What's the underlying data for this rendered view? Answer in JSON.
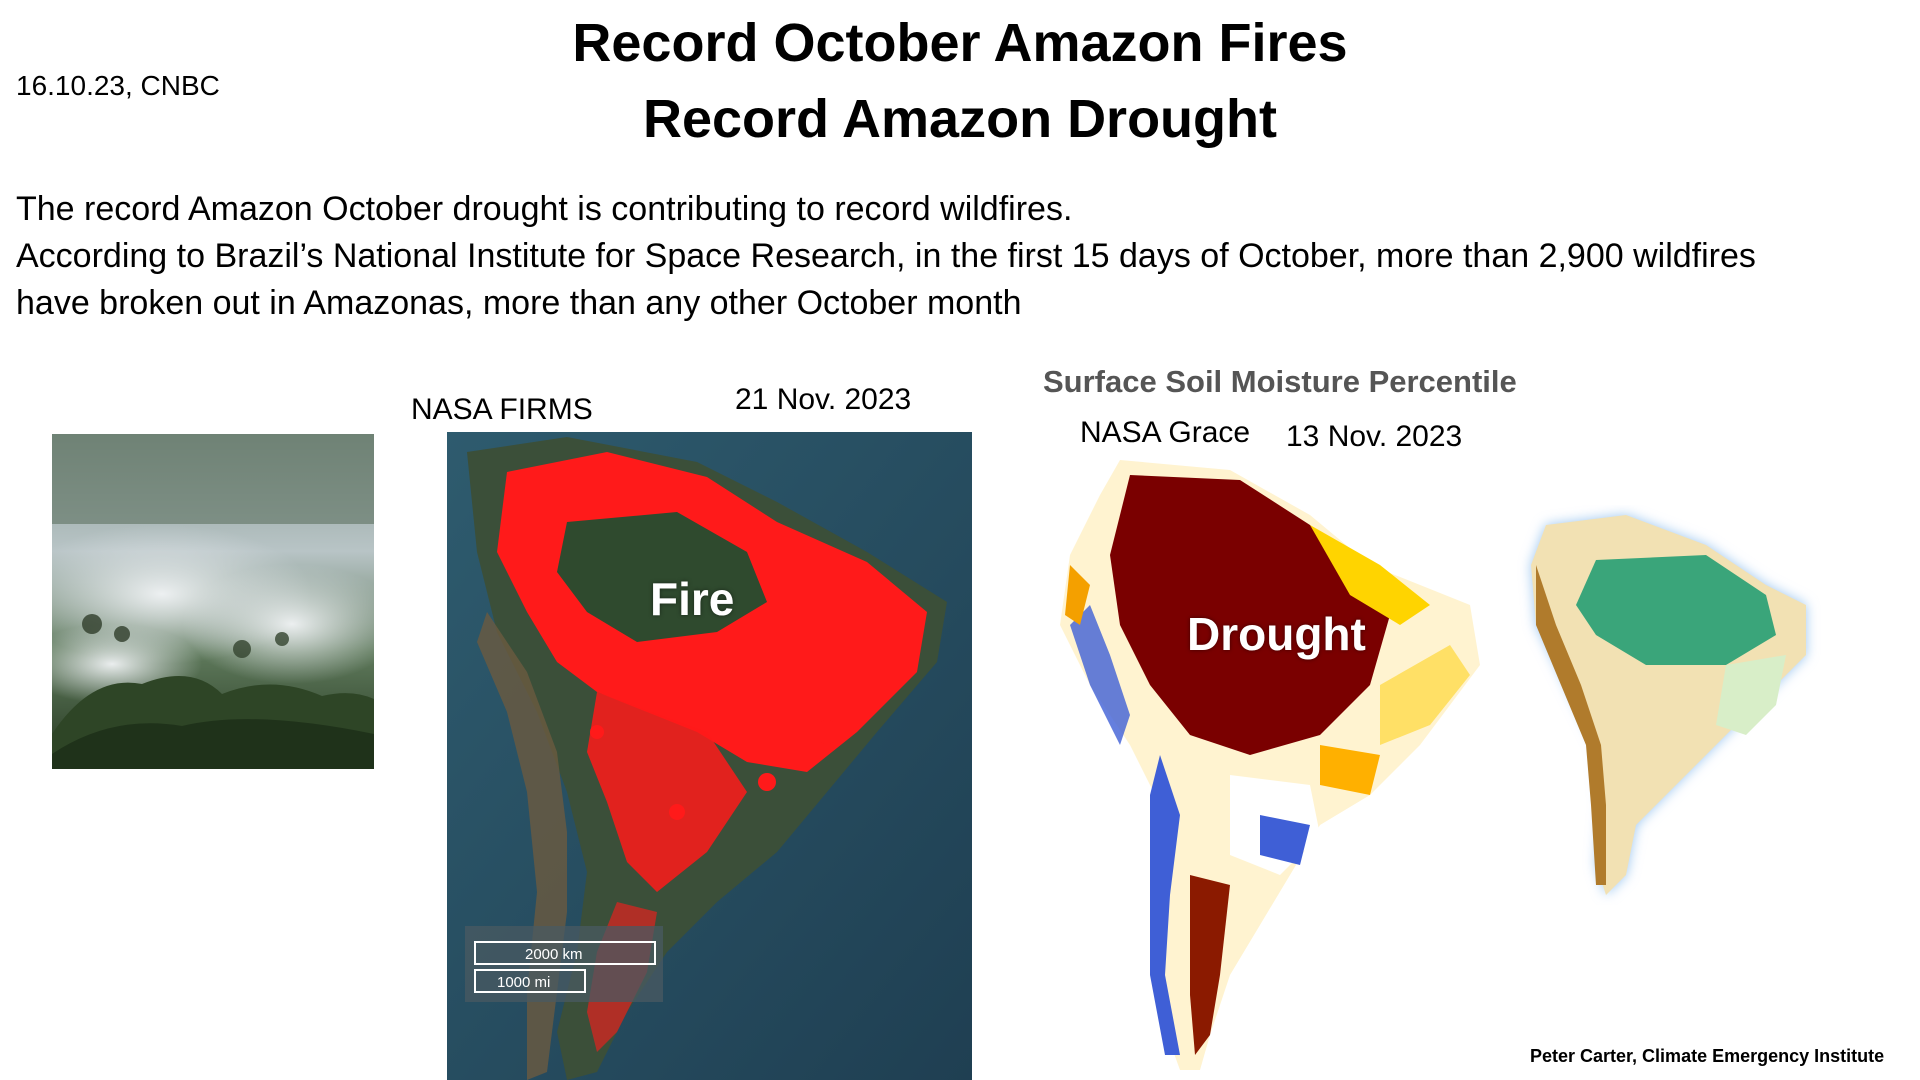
{
  "header": {
    "date_source": "16.10.23, CNBC",
    "title_line1": "Record October Amazon Fires",
    "title_line2": "Record Amazon Drought"
  },
  "body": {
    "line1": "The record Amazon October drought is contributing to record wildfires.",
    "line2": "According to Brazil’s National Institute for Space Research, in the first 15 days of October, more than 2,900 wildfires",
    "line3": "have broken out in Amazonas, more than any other October month"
  },
  "firms_map": {
    "source_label": "NASA FIRMS",
    "date": "21 Nov. 2023",
    "overlay_label": "Fire",
    "scale_km": "2000 km",
    "scale_mi": "1000 mi"
  },
  "grace_map": {
    "title": "Surface Soil Moisture Percentile",
    "source_label": "NASA Grace",
    "date": "13 Nov. 2023",
    "overlay_label": "Drought"
  },
  "credit": "Peter Carter, Climate Emergency Institute",
  "colors": {
    "fire_red": "#ff1a1a",
    "satellite_dark": "#2f4a3f",
    "drought_dark": "#7a0000",
    "amazon_green": "#3aa57a",
    "andes_brown": "#b07b2c"
  }
}
